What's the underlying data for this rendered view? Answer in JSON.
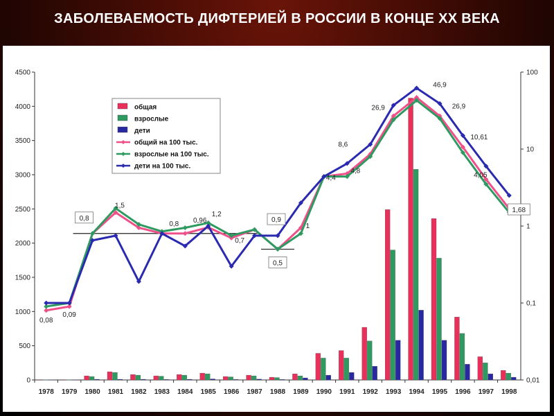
{
  "title": "ЗАБОЛЕВАЕМОСТЬ ДИФТЕРИЕЙ В РОССИИ  В КОНЦЕ  XX  ВЕКА",
  "chart_data": {
    "type": "bar",
    "title": "",
    "xlabel": "",
    "ylabel": "",
    "categories": [
      "1978",
      "1979",
      "1980",
      "1981",
      "1982",
      "1983",
      "1984",
      "1985",
      "1986",
      "1987",
      "1988",
      "1989",
      "1990",
      "1991",
      "1992",
      "1993",
      "1994",
      "1995",
      "1996",
      "1997",
      "1998"
    ],
    "ylim": [
      0,
      4500
    ],
    "yticks": [
      0,
      500,
      1000,
      1500,
      2000,
      2500,
      3000,
      3500,
      4000,
      4500
    ],
    "y2_scale": "log",
    "y2lim": [
      0.01,
      100
    ],
    "y2ticks": [
      "0,01",
      "0,1",
      "1",
      "10",
      "100"
    ],
    "y2tick_values": [
      0.01,
      0.1,
      1,
      10,
      100
    ],
    "grid": false,
    "legend_position": "top-left",
    "colors": {
      "total": "#e8305a",
      "adults": "#2e9a60",
      "children": "#2828a0",
      "total_rate": "#f0508a",
      "adults_rate": "#2e9a60",
      "children_rate": "#2a2ab0"
    },
    "series": [
      {
        "name": "общая",
        "kind": "bar",
        "axis": "left",
        "values": [
          5,
          5,
          60,
          120,
          80,
          60,
          80,
          100,
          50,
          70,
          40,
          90,
          390,
          430,
          770,
          2490,
          4120,
          2360,
          920,
          340,
          140
        ]
      },
      {
        "name": "взрослые",
        "kind": "bar",
        "axis": "left",
        "values": [
          3,
          3,
          50,
          110,
          70,
          55,
          70,
          90,
          45,
          60,
          35,
          60,
          320,
          320,
          570,
          1900,
          3080,
          1780,
          680,
          250,
          100
        ]
      },
      {
        "name": "дети",
        "kind": "bar",
        "axis": "left",
        "values": [
          1,
          1,
          10,
          10,
          10,
          8,
          10,
          15,
          8,
          12,
          8,
          30,
          70,
          110,
          200,
          580,
          1020,
          580,
          230,
          90,
          40
        ]
      },
      {
        "name": "общий на 100 тыс.",
        "kind": "line",
        "axis": "right",
        "values": [
          0.08,
          0.09,
          0.8,
          1.5,
          0.95,
          0.8,
          0.8,
          0.96,
          0.7,
          0.9,
          0.5,
          0.95,
          4.4,
          4.8,
          8.6,
          26.9,
          46.9,
          26.9,
          10.61,
          4.05,
          1.68
        ]
      },
      {
        "name": "взрослые на 100 тыс.",
        "kind": "line",
        "axis": "right",
        "values": [
          0.09,
          0.1,
          0.8,
          1.7,
          1.05,
          0.85,
          0.95,
          1.1,
          0.75,
          0.9,
          0.5,
          0.8,
          4.4,
          4.4,
          8.0,
          24.0,
          43.0,
          25.0,
          9.0,
          3.5,
          1.5
        ]
      },
      {
        "name": "дети на 100 тыс.",
        "kind": "line",
        "axis": "right",
        "values": [
          0.1,
          0.1,
          0.65,
          0.75,
          0.19,
          0.8,
          0.55,
          1.0,
          0.3,
          0.75,
          0.75,
          2.0,
          4.4,
          6.5,
          11.5,
          37.0,
          62.0,
          39.0,
          15.0,
          6.0,
          2.5
        ]
      }
    ],
    "annotations": [
      {
        "text": "0,08",
        "x": "1978",
        "y": 0.08
      },
      {
        "text": "0,09",
        "x": "1979",
        "y": 0.09
      },
      {
        "text": "0,8",
        "x": "1980",
        "y": 0.8,
        "boxed": true
      },
      {
        "text": "1,5",
        "x": "1981",
        "y": 1.5
      },
      {
        "text": "0,8",
        "x": "1984",
        "y": 0.8
      },
      {
        "text": "0,96",
        "x": "1985",
        "y": 0.96
      },
      {
        "text": "1,2",
        "x": "1985",
        "y": 1.2
      },
      {
        "text": "0,7",
        "x": "1986",
        "y": 0.7
      },
      {
        "text": "0,9",
        "x": "1988",
        "y": 0.9,
        "boxed": true
      },
      {
        "text": "0,5",
        "x": "1988",
        "y": 0.5,
        "boxed": true
      },
      {
        "text": "1",
        "x": "1989",
        "y": 1
      },
      {
        "text": "4,4",
        "x": "1990",
        "y": 4.4
      },
      {
        "text": "4,8",
        "x": "1991",
        "y": 4.8
      },
      {
        "text": "8,6",
        "x": "1991",
        "y": 8.6
      },
      {
        "text": "26,9",
        "x": "1993",
        "y": 26.9
      },
      {
        "text": "46,9",
        "x": "1995",
        "y": 46.9
      },
      {
        "text": "26,9",
        "x": "1996",
        "y": 26.9
      },
      {
        "text": "10,61",
        "x": "1997",
        "y": 10.61
      },
      {
        "text": "4,05",
        "x": "1997",
        "y": 4.05
      },
      {
        "text": "1,68",
        "x": "1998",
        "y": 1.68,
        "boxed": true
      }
    ]
  }
}
